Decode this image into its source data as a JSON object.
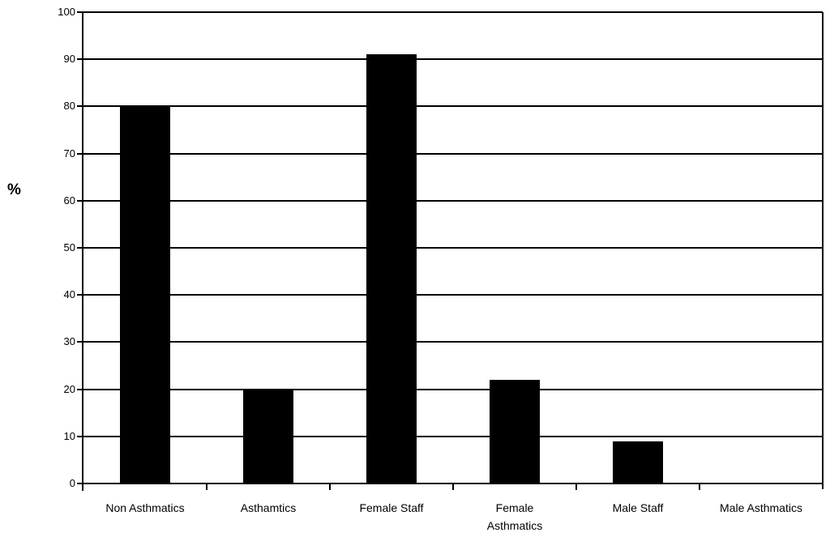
{
  "chart_data": {
    "type": "bar",
    "title": "",
    "xlabel": "",
    "ylabel": "%",
    "categories": [
      "Non Asthmatics",
      "Asthamtics",
      "Female Staff",
      "Female Asthmatics",
      "Male Staff",
      "Male Asthmatics"
    ],
    "tick_labels": [
      "Non Asthmatics",
      "Asthamtics",
      "Female Staff",
      "Female\nAsthmatics",
      "Male Staff",
      "Male Asthmatics"
    ],
    "values": [
      80,
      20,
      91,
      22,
      9,
      0
    ],
    "ylim": [
      0,
      100
    ],
    "yticks": [
      0,
      10,
      20,
      30,
      40,
      50,
      60,
      70,
      80,
      90,
      100
    ],
    "grid": true,
    "legend": false,
    "bar_color": "#000000",
    "axis_color": "#000000",
    "background_color": "#ffffff"
  }
}
